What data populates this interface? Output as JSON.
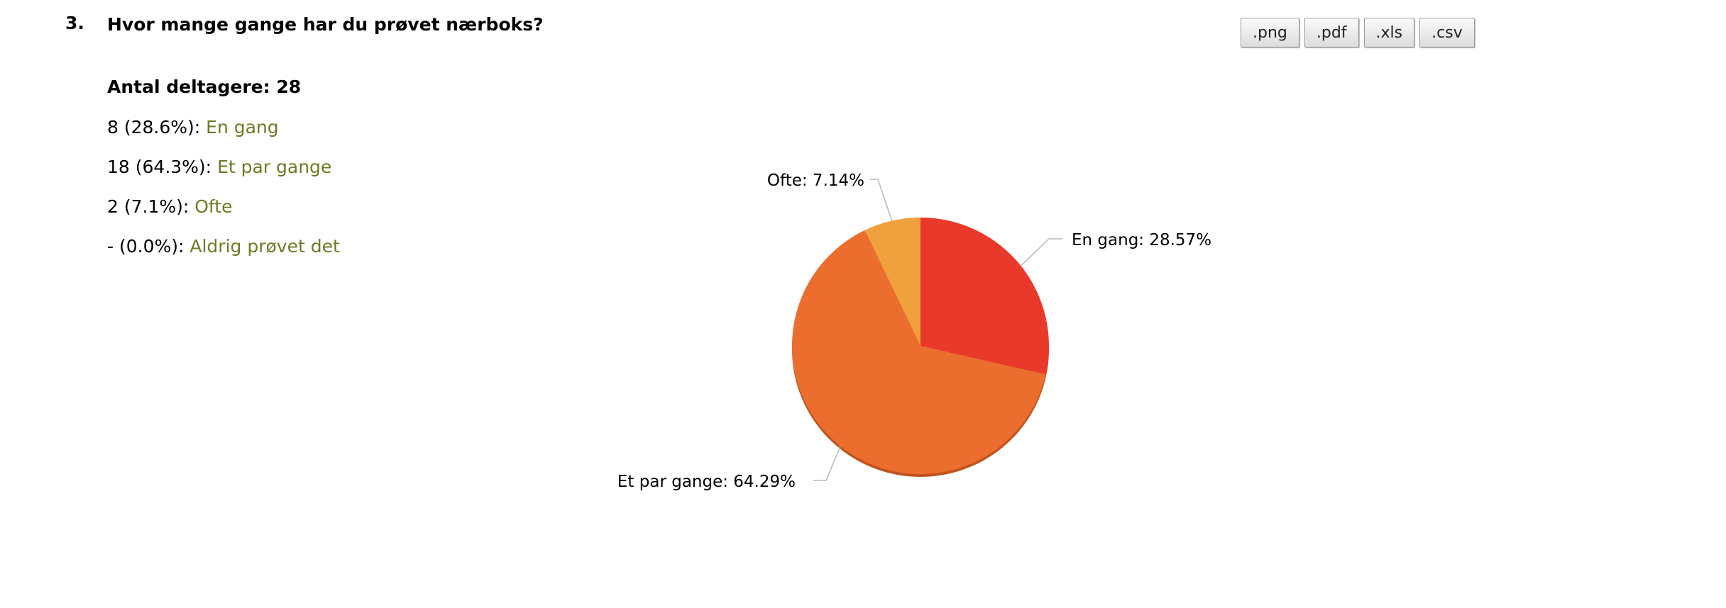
{
  "question": {
    "number": "3.",
    "title": "Hvor mange gange har du prøvet nærboks?",
    "participants": "Antal deltagere: 28"
  },
  "answers": [
    {
      "count": "8 (28.6%):",
      "label": "En gang"
    },
    {
      "count": "18 (64.3%):",
      "label": "Et par gange"
    },
    {
      "count": "2 (7.1%):",
      "label": "Ofte"
    },
    {
      "count": "- (0.0%):",
      "label": "Aldrig prøvet det"
    }
  ],
  "export_buttons": [
    ".png",
    ".pdf",
    ".xls",
    ".csv"
  ],
  "colors": {
    "answer_label": "#6b7c24",
    "slice_en_gang": "#e8392a",
    "slice_et_par_gange": "#ec6e2e",
    "slice_ofte": "#f0a03c"
  },
  "chart_data": {
    "type": "pie",
    "categories": [
      "En gang",
      "Et par gange",
      "Ofte"
    ],
    "values": [
      28.57,
      64.29,
      7.14
    ],
    "slice_labels": [
      "En gang: 28.57%",
      "Et par gange: 64.29%",
      "Ofte: 7.14%"
    ],
    "start_angle": "12 o'clock, clockwise",
    "legend": "none"
  }
}
